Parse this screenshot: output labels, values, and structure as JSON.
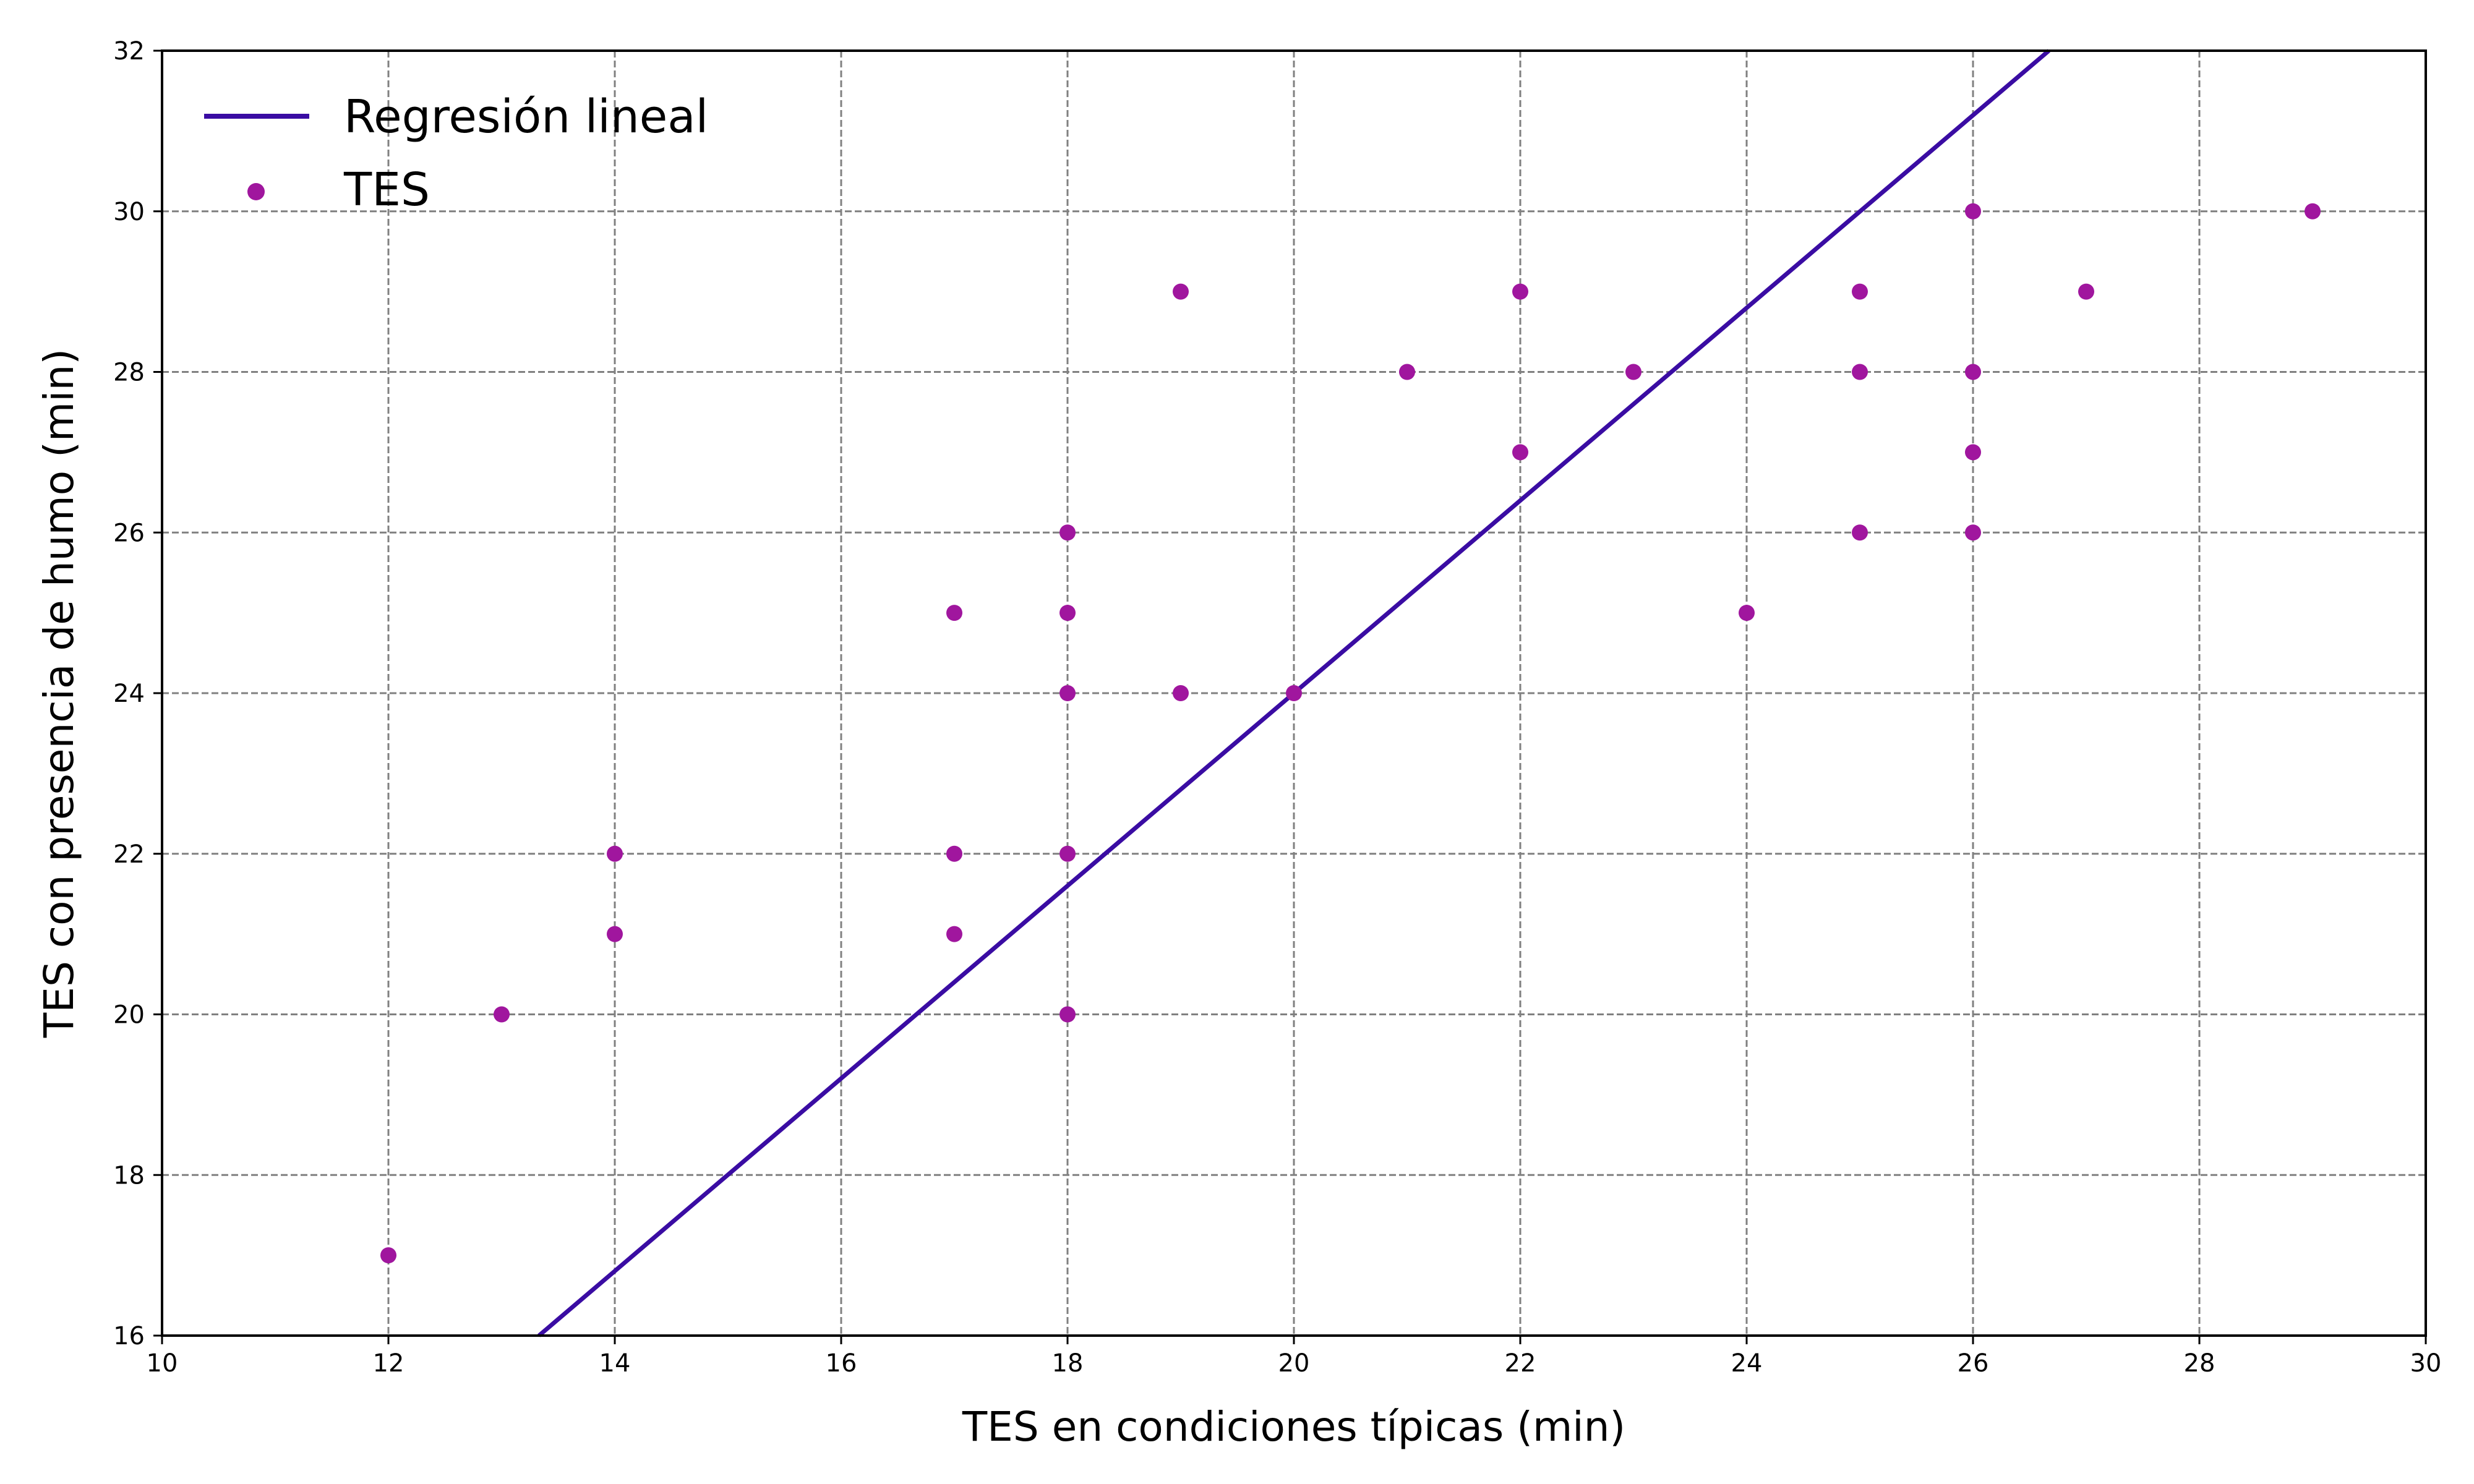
{
  "chart_data": {
    "type": "scatter",
    "title": "",
    "xlabel": "TES en condiciones típicas (min)",
    "ylabel": "TES con presencia de humo (min)",
    "xlim": [
      10,
      30
    ],
    "ylim": [
      16,
      32
    ],
    "xticks": [
      "10",
      "12",
      "14",
      "16",
      "18",
      "20",
      "22",
      "24",
      "26",
      "28",
      "30"
    ],
    "yticks": [
      "16",
      "18",
      "20",
      "22",
      "24",
      "26",
      "28",
      "30",
      "32"
    ],
    "grid": true,
    "legend_position": "top-left",
    "series": [
      {
        "name": "Regresión lineal",
        "kind": "line",
        "color": "#3a0ca3",
        "points": [
          [
            13.33,
            16
          ],
          [
            26.67,
            32
          ]
        ]
      },
      {
        "name": "TES",
        "kind": "scatter",
        "color": "#a0169e",
        "points": [
          [
            12,
            17
          ],
          [
            13,
            20
          ],
          [
            14,
            22
          ],
          [
            14,
            21
          ],
          [
            17,
            25
          ],
          [
            17,
            22
          ],
          [
            17,
            21
          ],
          [
            18,
            26
          ],
          [
            18,
            25
          ],
          [
            18,
            24
          ],
          [
            18,
            22
          ],
          [
            18,
            20
          ],
          [
            19,
            29
          ],
          [
            19,
            24
          ],
          [
            20,
            24
          ],
          [
            21,
            28
          ],
          [
            22,
            29
          ],
          [
            22,
            27
          ],
          [
            23,
            28
          ],
          [
            24,
            25
          ],
          [
            25,
            29
          ],
          [
            25,
            28
          ],
          [
            25,
            26
          ],
          [
            26,
            30
          ],
          [
            26,
            28
          ],
          [
            26,
            27
          ],
          [
            26,
            26
          ],
          [
            27,
            29
          ],
          [
            29,
            30
          ]
        ]
      }
    ]
  }
}
